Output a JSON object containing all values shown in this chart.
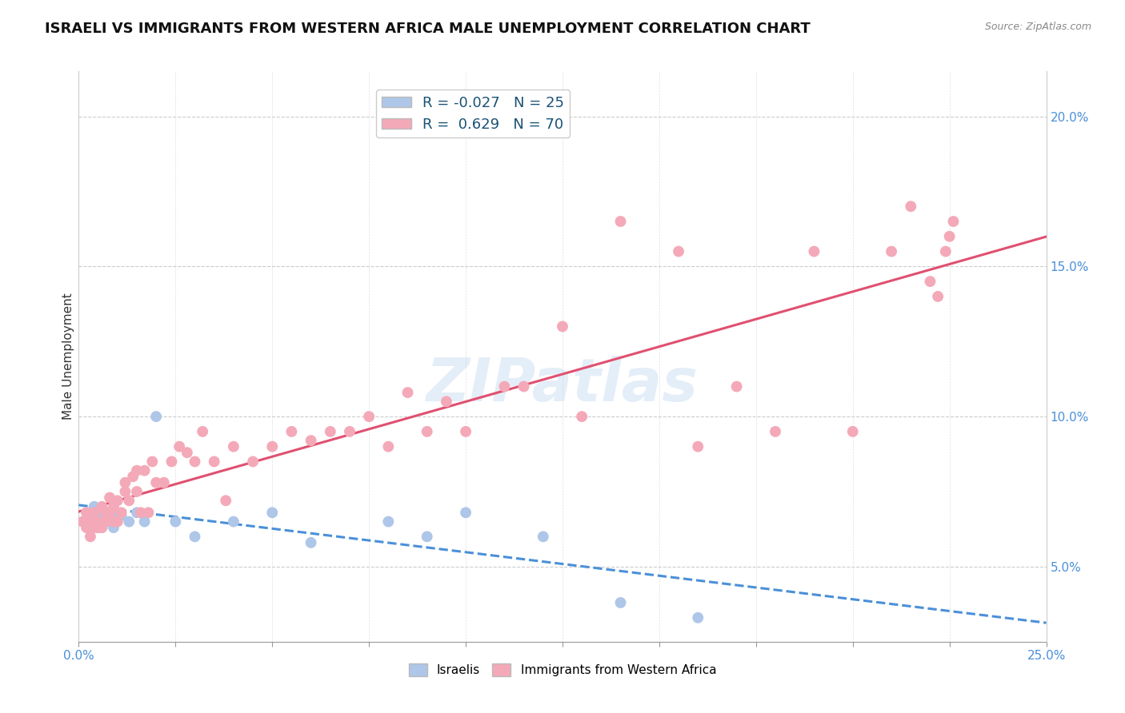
{
  "title": "ISRAELI VS IMMIGRANTS FROM WESTERN AFRICA MALE UNEMPLOYMENT CORRELATION CHART",
  "source": "Source: ZipAtlas.com",
  "ylabel": "Male Unemployment",
  "xlim": [
    0.0,
    0.25
  ],
  "ylim": [
    0.025,
    0.215
  ],
  "right_yticks": [
    0.05,
    0.1,
    0.15,
    0.2
  ],
  "right_yticklabels": [
    "5.0%",
    "10.0%",
    "15.0%",
    "20.0%"
  ],
  "watermark": "ZIPatlas",
  "series": [
    {
      "label": "Israelis",
      "R": -0.027,
      "N": 25,
      "color": "#aec6e8",
      "line_color": "#4a90d9",
      "line_style": "--",
      "x": [
        0.002,
        0.003,
        0.004,
        0.005,
        0.006,
        0.007,
        0.008,
        0.009,
        0.01,
        0.011,
        0.013,
        0.015,
        0.017,
        0.02,
        0.025,
        0.03,
        0.04,
        0.05,
        0.06,
        0.08,
        0.09,
        0.1,
        0.12,
        0.14,
        0.16
      ],
      "y": [
        0.068,
        0.065,
        0.07,
        0.063,
        0.067,
        0.068,
        0.065,
        0.063,
        0.068,
        0.067,
        0.065,
        0.068,
        0.065,
        0.1,
        0.065,
        0.06,
        0.065,
        0.068,
        0.058,
        0.065,
        0.06,
        0.068,
        0.06,
        0.038,
        0.033
      ]
    },
    {
      "label": "Immigrants from Western Africa",
      "R": 0.629,
      "N": 70,
      "color": "#f4a9b8",
      "line_color": "#e05070",
      "line_style": "-",
      "x": [
        0.001,
        0.002,
        0.002,
        0.003,
        0.003,
        0.004,
        0.004,
        0.005,
        0.005,
        0.006,
        0.006,
        0.007,
        0.007,
        0.008,
        0.008,
        0.009,
        0.009,
        0.01,
        0.01,
        0.011,
        0.012,
        0.012,
        0.013,
        0.014,
        0.015,
        0.015,
        0.016,
        0.017,
        0.018,
        0.019,
        0.02,
        0.022,
        0.024,
        0.026,
        0.028,
        0.03,
        0.032,
        0.035,
        0.038,
        0.04,
        0.045,
        0.05,
        0.055,
        0.06,
        0.065,
        0.07,
        0.075,
        0.08,
        0.085,
        0.09,
        0.095,
        0.1,
        0.11,
        0.115,
        0.125,
        0.13,
        0.14,
        0.155,
        0.16,
        0.17,
        0.18,
        0.19,
        0.2,
        0.21,
        0.215,
        0.22,
        0.222,
        0.224,
        0.225,
        0.226
      ],
      "y": [
        0.065,
        0.063,
        0.068,
        0.06,
        0.065,
        0.063,
        0.068,
        0.063,
        0.065,
        0.063,
        0.07,
        0.068,
        0.065,
        0.068,
        0.073,
        0.065,
        0.07,
        0.065,
        0.072,
        0.068,
        0.075,
        0.078,
        0.072,
        0.08,
        0.075,
        0.082,
        0.068,
        0.082,
        0.068,
        0.085,
        0.078,
        0.078,
        0.085,
        0.09,
        0.088,
        0.085,
        0.095,
        0.085,
        0.072,
        0.09,
        0.085,
        0.09,
        0.095,
        0.092,
        0.095,
        0.095,
        0.1,
        0.09,
        0.108,
        0.095,
        0.105,
        0.095,
        0.11,
        0.11,
        0.13,
        0.1,
        0.165,
        0.155,
        0.09,
        0.11,
        0.095,
        0.155,
        0.095,
        0.155,
        0.17,
        0.145,
        0.14,
        0.155,
        0.16,
        0.165
      ]
    }
  ],
  "background_color": "#ffffff",
  "grid_color": "#cccccc",
  "title_fontsize": 13,
  "axis_label_fontsize": 11,
  "tick_fontsize": 11,
  "legend_fontsize": 13
}
